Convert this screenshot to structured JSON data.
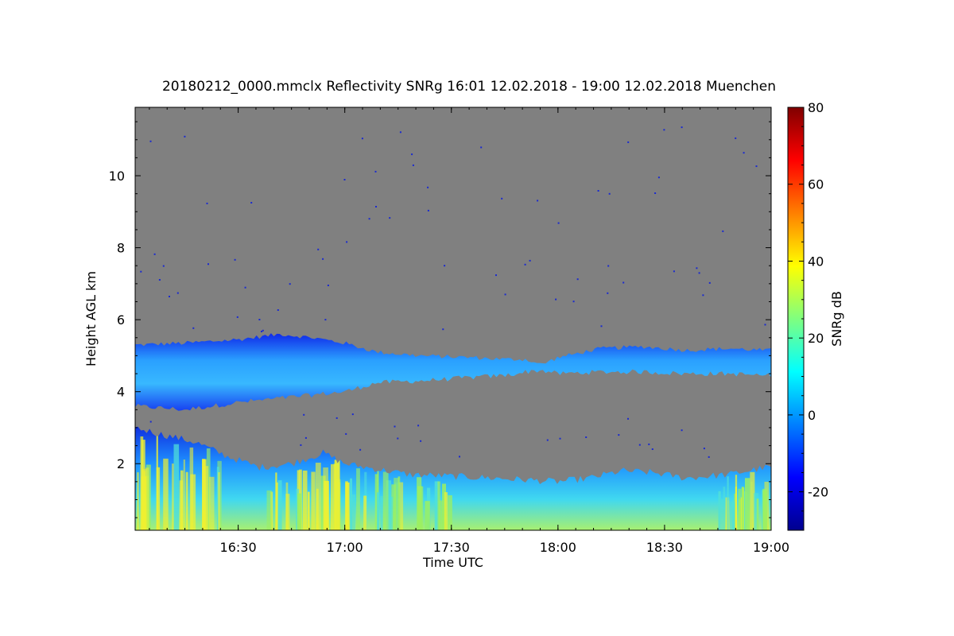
{
  "chart_data": {
    "type": "heatmap",
    "title": "20180212_0000.mmclx Reflectivity SNRg   16:01 12.02.2018 - 19:00 12.02.2018 Muenchen",
    "xlabel": "Time UTC",
    "ylabel": "Height AGL km",
    "colorbar_label": "SNRg dB",
    "x_range": [
      "16:01",
      "19:00"
    ],
    "x_ticks": [
      "16:30",
      "17:00",
      "17:30",
      "18:00",
      "18:30",
      "19:00"
    ],
    "ylim": [
      0.15,
      11.9
    ],
    "y_ticks": [
      2,
      4,
      6,
      8,
      10
    ],
    "colorbar_range": [
      -30,
      80
    ],
    "colorbar_ticks": [
      -20,
      0,
      20,
      40,
      60,
      80
    ],
    "colormap": "jet",
    "background_color": "#808080",
    "grid": false,
    "features": [
      {
        "name": "upper cloud layer",
        "approx_base_km": [
          3.6,
          4.6
        ],
        "approx_top_km": [
          5.0,
          5.6
        ],
        "approx_snr_db": [
          -15,
          10
        ]
      },
      {
        "name": "lower precipitation layer",
        "approx_base_km": 0.15,
        "approx_top_km": [
          1.5,
          3.0
        ],
        "approx_snr_db": [
          -10,
          40
        ]
      }
    ],
    "upper_layer_top_km": [
      [
        16.02,
        5.3
      ],
      [
        16.25,
        5.35
      ],
      [
        16.5,
        5.45
      ],
      [
        16.7,
        5.6
      ],
      [
        16.85,
        5.5
      ],
      [
        17.0,
        5.35
      ],
      [
        17.15,
        5.1
      ],
      [
        17.35,
        5.0
      ],
      [
        17.6,
        4.95
      ],
      [
        17.75,
        4.9
      ],
      [
        17.85,
        4.9
      ],
      [
        17.92,
        4.75
      ],
      [
        18.0,
        4.95
      ],
      [
        18.2,
        5.2
      ],
      [
        18.4,
        5.25
      ],
      [
        18.6,
        5.15
      ],
      [
        18.8,
        5.2
      ],
      [
        18.98,
        5.15
      ]
    ],
    "upper_layer_base_km": [
      [
        16.02,
        3.6
      ],
      [
        16.25,
        3.5
      ],
      [
        16.5,
        3.7
      ],
      [
        16.75,
        3.85
      ],
      [
        17.0,
        4.0
      ],
      [
        17.15,
        4.25
      ],
      [
        17.35,
        4.3
      ],
      [
        17.6,
        4.4
      ],
      [
        17.75,
        4.45
      ],
      [
        17.85,
        4.55
      ],
      [
        17.92,
        4.6
      ],
      [
        18.0,
        4.5
      ],
      [
        18.2,
        4.55
      ],
      [
        18.4,
        4.55
      ],
      [
        18.6,
        4.5
      ],
      [
        18.8,
        4.5
      ],
      [
        18.98,
        4.45
      ]
    ],
    "lower_layer_top_km": [
      [
        16.02,
        3.0
      ],
      [
        16.15,
        2.8
      ],
      [
        16.3,
        2.6
      ],
      [
        16.45,
        2.2
      ],
      [
        16.6,
        1.9
      ],
      [
        16.75,
        2.0
      ],
      [
        16.9,
        2.3
      ],
      [
        17.0,
        2.0
      ],
      [
        17.15,
        1.85
      ],
      [
        17.3,
        1.7
      ],
      [
        17.5,
        1.65
      ],
      [
        17.7,
        1.6
      ],
      [
        17.85,
        1.55
      ],
      [
        18.0,
        1.5
      ],
      [
        18.15,
        1.6
      ],
      [
        18.3,
        1.8
      ],
      [
        18.45,
        1.75
      ],
      [
        18.6,
        1.6
      ],
      [
        18.8,
        1.7
      ],
      [
        18.98,
        1.9
      ]
    ]
  }
}
